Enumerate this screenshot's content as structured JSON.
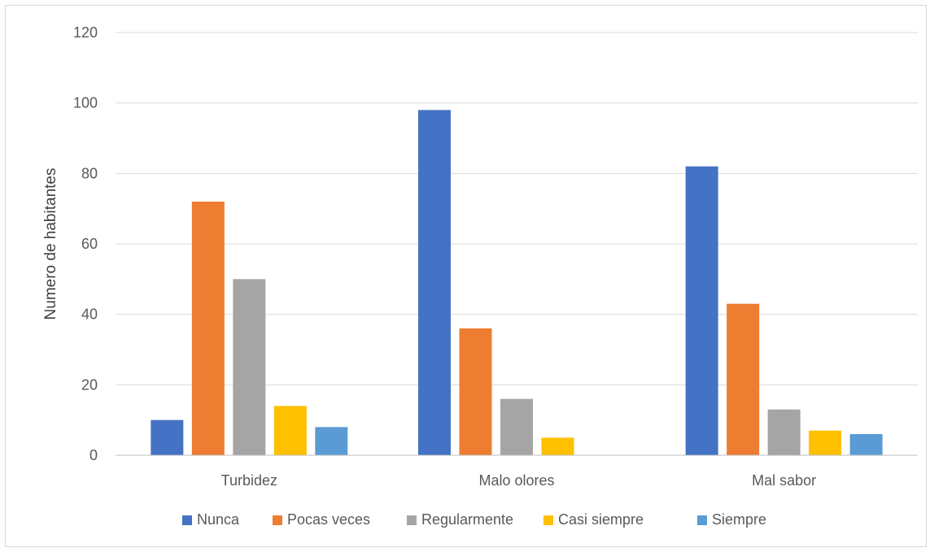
{
  "chart_data": {
    "type": "bar",
    "title": "",
    "xlabel": "",
    "ylabel": "Numero de habitantes",
    "ylim": [
      0,
      120
    ],
    "yticks": [
      0,
      20,
      40,
      60,
      80,
      100,
      120
    ],
    "grid": true,
    "legend_position": "bottom",
    "categories": [
      "Turbidez",
      "Malo olores",
      "Mal sabor"
    ],
    "series": [
      {
        "name": "Nunca",
        "color": "#4472c4",
        "values": [
          10,
          98,
          82
        ]
      },
      {
        "name": "Pocas veces",
        "color": "#ed7d31",
        "values": [
          72,
          36,
          43
        ]
      },
      {
        "name": "Regularmente",
        "color": "#a5a5a5",
        "values": [
          50,
          16,
          13
        ]
      },
      {
        "name": "Casi siempre",
        "color": "#ffc000",
        "values": [
          14,
          5,
          7
        ]
      },
      {
        "name": "Siempre",
        "color": "#5b9bd5",
        "values": [
          8,
          0,
          6
        ]
      }
    ]
  }
}
